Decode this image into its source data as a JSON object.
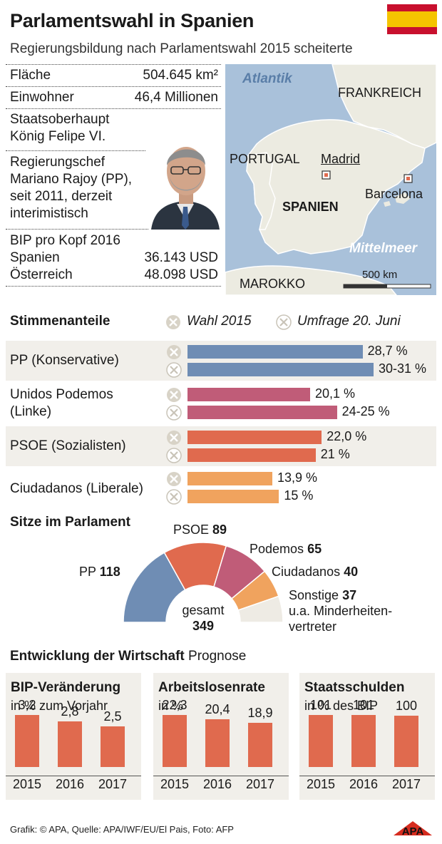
{
  "header": {
    "title": "Parlamentswahl in Spanien",
    "subtitle": "Regierungsbildung nach Parlamentswahl 2015 scheiterte"
  },
  "facts": {
    "area_label": "Fläche",
    "area_value": "504.645 km²",
    "population_label": "Einwohner",
    "population_value": "46,4 Millionen",
    "head_of_state_label": "Staatsoberhaupt",
    "head_of_state_value": "König Felipe VI.",
    "head_of_gov_lines": [
      "Regierungschef",
      "Mariano Rajoy (PP),",
      "seit 2011, derzeit",
      "interimistisch"
    ],
    "gdp_label": "BIP pro Kopf 2016",
    "gdp_rows": [
      {
        "country": "Spanien",
        "value": "36.143 USD"
      },
      {
        "country": "Österreich",
        "value": "48.098 USD"
      }
    ]
  },
  "map": {
    "labels": {
      "atlantik": "Atlantik",
      "frankreich": "FRANKREICH",
      "portugal": "PORTUGAL",
      "madrid": "Madrid",
      "spanien": "SPANIEN",
      "barcelona": "Barcelona",
      "mittelmeer": "Mittelmeer",
      "marokko": "MAROKKO",
      "scale": "500 km"
    }
  },
  "votes": {
    "heading": "Stimmenanteile",
    "legend_wahl": "Wahl 2015",
    "legend_umfrage": "Umfrage 20. Juni"
  },
  "seats": {
    "heading": "Sitze im Parlament",
    "total_label": "gesamt",
    "total_value": "349",
    "others_note_lines": [
      "u.a. Minderheiten-",
      "vertreter"
    ]
  },
  "economy": {
    "heading": "Entwicklung der Wirtschaft",
    "heading_suffix": "Prognose"
  },
  "footer": {
    "credit": "Grafik: © APA, Quelle: APA/IWF/EU/El Pais, Foto: AFP",
    "logo": "APA"
  },
  "colors": {
    "pp": "#6f8db4",
    "podemos": "#c05c78",
    "psoe": "#e06a4e",
    "ciudadanos": "#f0a35e",
    "sonstige": "#eeebe4",
    "sea": "#a9c1da",
    "land": "#ecebe1"
  },
  "chart_data": [
    {
      "type": "bar",
      "title": "Stimmenanteile",
      "categories": [
        "PP (Konservative)",
        "Unidos Podemos (Linke)",
        "PSOE (Sozialisten)",
        "Ciudadanos (Liberale)"
      ],
      "series": [
        {
          "name": "Wahl 2015",
          "values": [
            28.7,
            20.1,
            22.0,
            13.9
          ],
          "labels": [
            "28,7 %",
            "20,1 %",
            "22,0 %",
            "13,9 %"
          ]
        },
        {
          "name": "Umfrage 20. Juni",
          "values": [
            30.5,
            24.5,
            21,
            15
          ],
          "labels": [
            "30-31 %",
            "24-25 %",
            "21 %",
            "15 %"
          ]
        }
      ]
    },
    {
      "type": "pie",
      "title": "Sitze im Parlament",
      "categories": [
        "PP",
        "PSOE",
        "Podemos",
        "Ciudadanos",
        "Sonstige"
      ],
      "values": [
        118,
        89,
        65,
        40,
        37
      ]
    },
    {
      "type": "bar",
      "title": "BIP-Veränderung",
      "ylabel": "in % zum Vorjahr",
      "categories": [
        "2015",
        "2016",
        "2017"
      ],
      "values": [
        3.2,
        2.8,
        2.5
      ],
      "labels": [
        "3,2",
        "2,8",
        "2,5"
      ]
    },
    {
      "type": "bar",
      "title": "Arbeitslosenrate",
      "ylabel": "in %",
      "categories": [
        "2015",
        "2016",
        "2017"
      ],
      "values": [
        22.3,
        20.4,
        18.9
      ],
      "labels": [
        "22,3",
        "20,4",
        "18,9"
      ]
    },
    {
      "type": "bar",
      "title": "Staatsschulden",
      "ylabel": "in % des BIP",
      "categories": [
        "2015",
        "2016",
        "2017"
      ],
      "values": [
        101,
        101,
        100
      ],
      "labels": [
        "101",
        "101",
        "100"
      ]
    }
  ]
}
